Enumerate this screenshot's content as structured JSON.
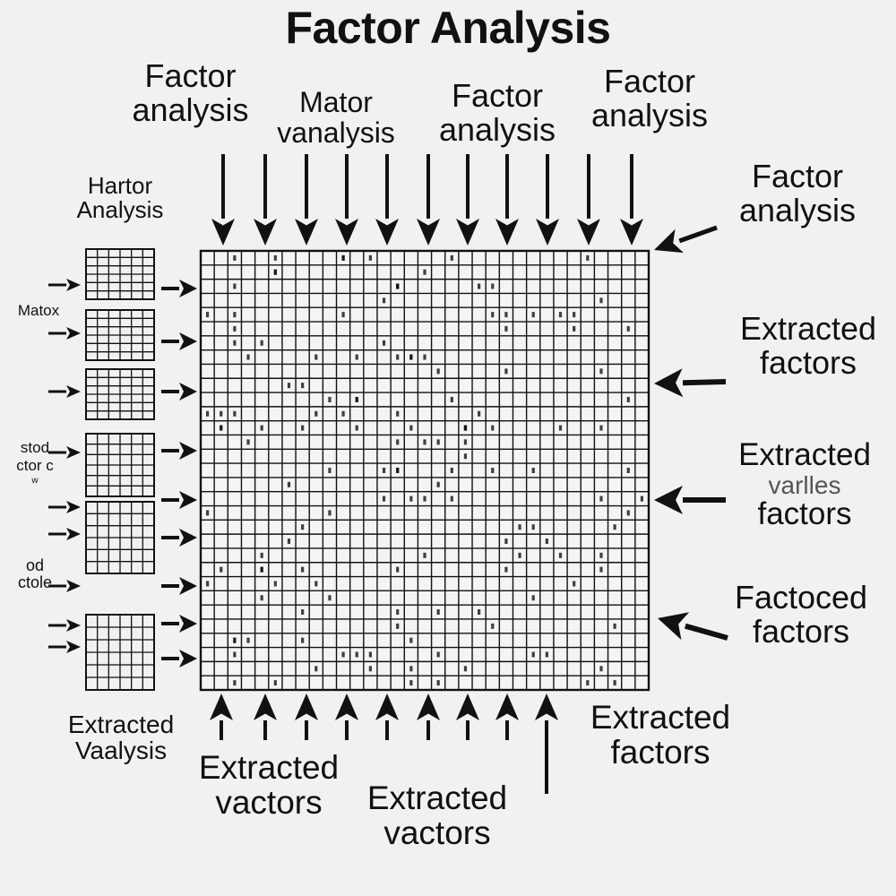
{
  "title": "Factor Analysis",
  "top_labels": [
    [
      "Factor",
      "analysis"
    ],
    [
      "Mator",
      "vanalysis"
    ],
    [
      "Factor",
      "analysis"
    ],
    [
      "Factor",
      "analysis"
    ]
  ],
  "left_labels": {
    "heading": [
      "Hartor",
      "Analysis"
    ],
    "matox": "Matox",
    "side_a": [
      "stod",
      "ctor c",
      "w"
    ],
    "side_b": [
      "od",
      "ctole"
    ],
    "bottom": [
      "Extracted",
      "Vaalysis"
    ]
  },
  "right_labels": [
    [
      "Factor",
      "analysis"
    ],
    [
      "Extracted",
      "factors"
    ],
    [
      "Extracted",
      "varlles",
      "factors"
    ],
    [
      "Factoced",
      "factors"
    ]
  ],
  "bottom_labels": [
    [
      "Extracted",
      "vactors"
    ],
    [
      "Extracted",
      "vactors"
    ],
    [
      "Extracted",
      "factors"
    ]
  ],
  "colors": {
    "ink": "#111111",
    "background": "#f1f1f1"
  },
  "grid": {
    "rows": 31,
    "cols": 33,
    "small_rows": 6,
    "small_cols": 6,
    "small_blocks": 6
  }
}
